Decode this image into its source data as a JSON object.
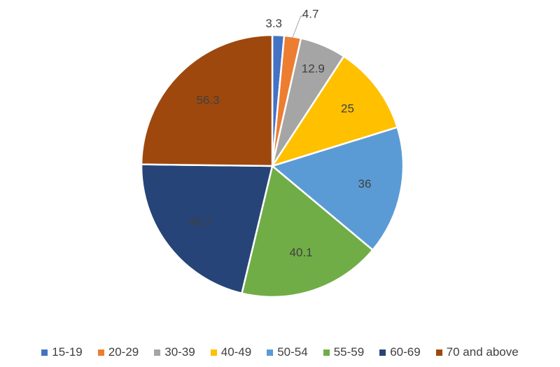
{
  "chart_data": {
    "type": "pie",
    "title": "",
    "categories": [
      "15-19",
      "20-29",
      "30-39",
      "40-49",
      "50-54",
      "55-59",
      "60-69",
      "70 and above"
    ],
    "values": [
      3.3,
      4.7,
      12.9,
      25,
      36,
      40.1,
      48.7,
      56.3
    ],
    "data_labels": [
      "3.3",
      "4.7",
      "12.9",
      "25",
      "36",
      "40.1",
      "48.7",
      "56.3"
    ],
    "colors": [
      "#4472C4",
      "#ED7D31",
      "#A5A5A5",
      "#FFC000",
      "#5B9BD5",
      "#70AD47",
      "#264478",
      "#9E480E"
    ],
    "legend_position": "bottom",
    "start_angle": "12 o'clock",
    "direction": "clockwise"
  }
}
